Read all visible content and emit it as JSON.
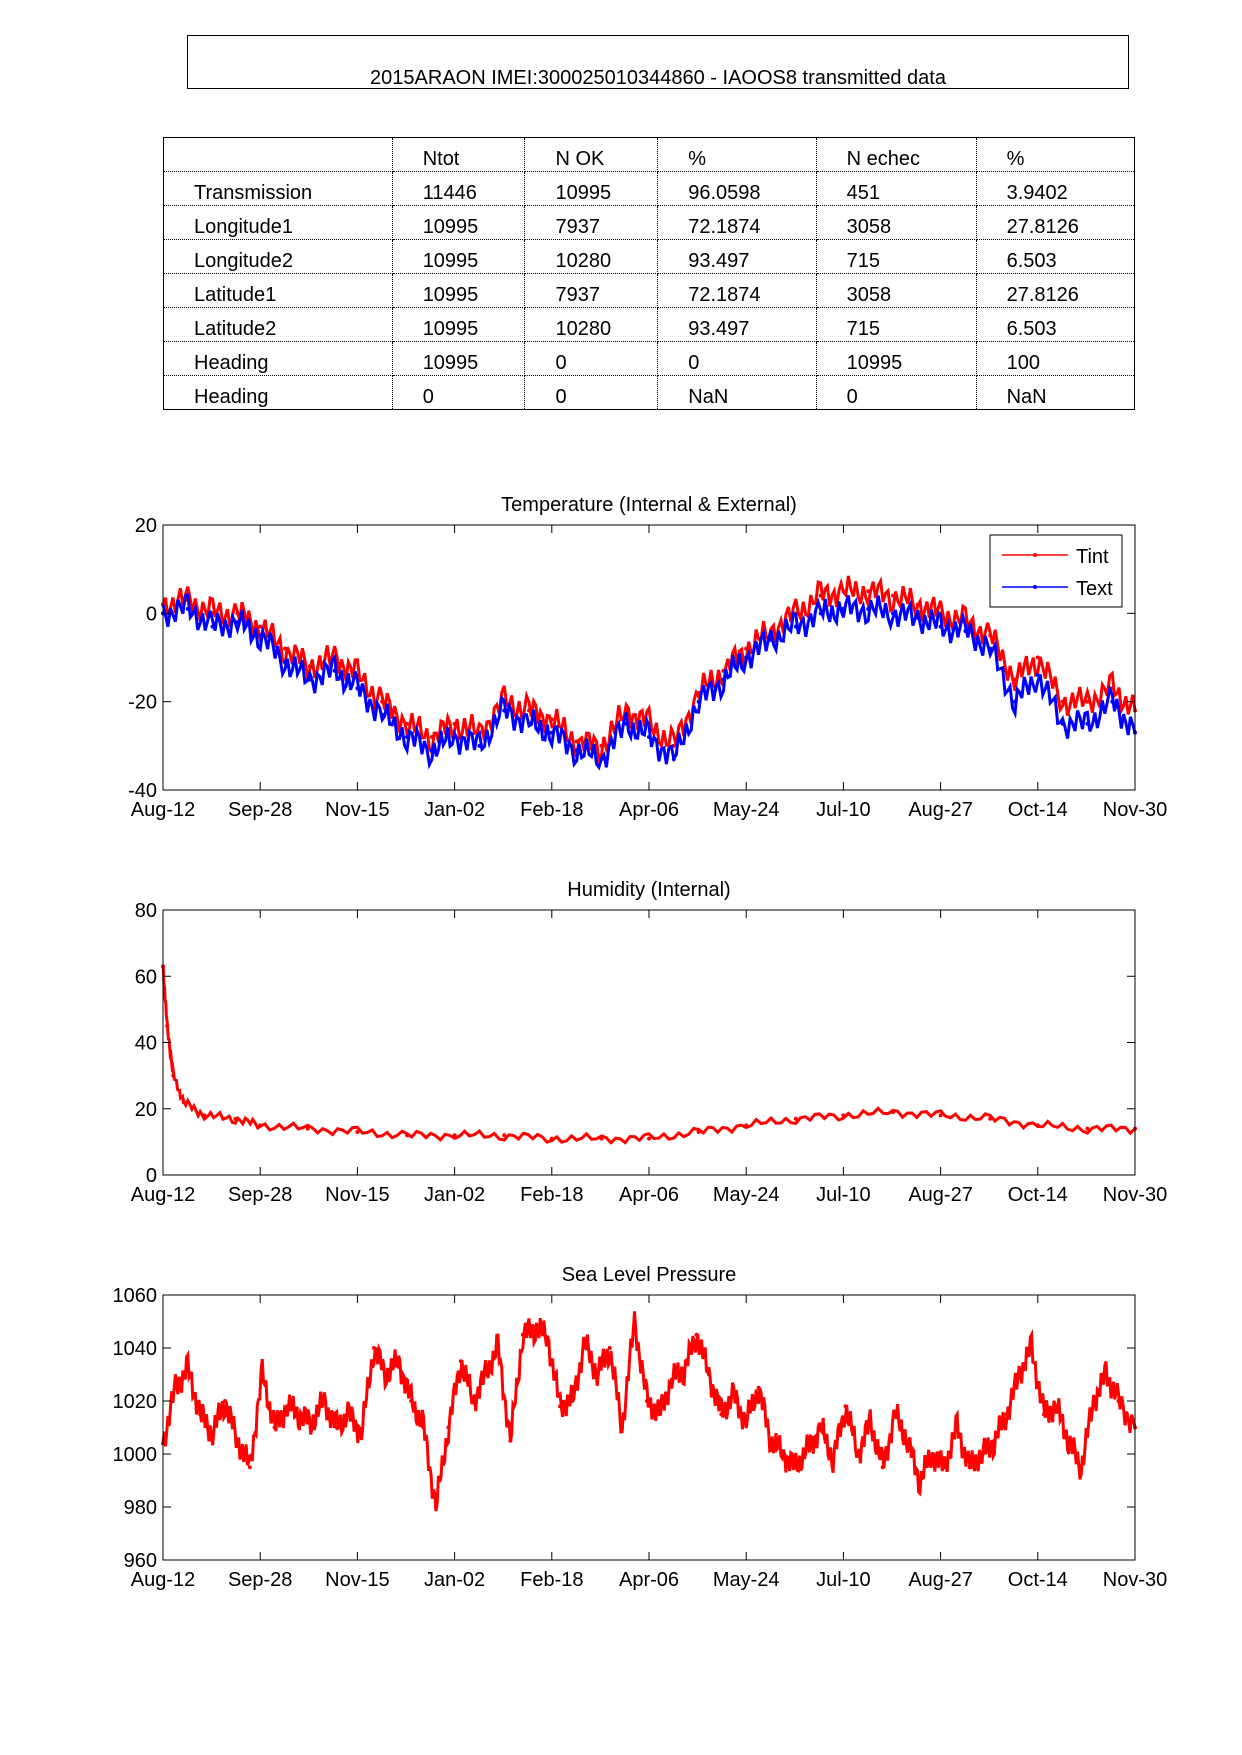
{
  "header": {
    "title": "2015ARAON  IMEI:300025010344860  - IAOOS8 transmitted data"
  },
  "table": {
    "columns": [
      "",
      "Ntot",
      "N OK",
      "%",
      "N echec",
      "%"
    ],
    "rows": [
      [
        "Transmission",
        "11446",
        "10995",
        "96.0598",
        "451",
        "3.9402"
      ],
      [
        "Longitude1",
        "10995",
        "7937",
        "72.1874",
        "3058",
        "27.8126"
      ],
      [
        "Longitude2",
        "10995",
        "10280",
        "93.497",
        "715",
        "6.503"
      ],
      [
        "Latitude1",
        "10995",
        "7937",
        "72.1874",
        "3058",
        "27.8126"
      ],
      [
        "Latitude2",
        "10995",
        "10280",
        "93.497",
        "715",
        "6.503"
      ],
      [
        "Heading",
        "10995",
        "0",
        "0",
        "10995",
        "100"
      ],
      [
        "Heading",
        "0",
        "0",
        "NaN",
        "0",
        "NaN"
      ]
    ]
  },
  "chart_data": [
    {
      "type": "line",
      "title": "Temperature (Internal & External)",
      "xticks": [
        "Aug-12",
        "Sep-28",
        "Nov-15",
        "Jan-02",
        "Feb-18",
        "Apr-06",
        "May-24",
        "Jul-10",
        "Aug-27",
        "Oct-14",
        "Nov-30"
      ],
      "xlim": [
        0,
        470
      ],
      "ylim": [
        -40,
        20
      ],
      "yticks": [
        -40,
        -20,
        0,
        20
      ],
      "legend": "top-right",
      "x": [
        0,
        12,
        24,
        36,
        47,
        59,
        71,
        83,
        94,
        106,
        118,
        130,
        141,
        153,
        165,
        177,
        188,
        200,
        212,
        224,
        235,
        247,
        259,
        271,
        282,
        294,
        306,
        318,
        329,
        341,
        353,
        365,
        376,
        388,
        400,
        412,
        423,
        435,
        447,
        459,
        470
      ],
      "series": [
        {
          "name": "Tint",
          "color": "#ff0000",
          "values": [
            2,
            3,
            0,
            0,
            -3,
            -8,
            -12,
            -10,
            -14,
            -20,
            -25,
            -28,
            -25,
            -27,
            -20,
            -22,
            -24,
            -29,
            -30,
            -22,
            -25,
            -30,
            -18,
            -13,
            -8,
            -4,
            0,
            4,
            5,
            5,
            4,
            2,
            0,
            -2,
            -5,
            -15,
            -10,
            -20,
            -20,
            -17,
            -22
          ]
        },
        {
          "name": "Text",
          "color": "#0000ff",
          "values": [
            0,
            1,
            -3,
            -2,
            -5,
            -11,
            -15,
            -13,
            -17,
            -23,
            -28,
            -31,
            -28,
            -30,
            -22,
            -25,
            -27,
            -31,
            -33,
            -25,
            -28,
            -33,
            -20,
            -15,
            -10,
            -6,
            -3,
            0,
            1,
            1,
            0,
            -1,
            -3,
            -4,
            -8,
            -20,
            -14,
            -25,
            -25,
            -20,
            -27
          ]
        }
      ]
    },
    {
      "type": "line",
      "title": "Humidity (Internal)",
      "xticks": [
        "Aug-12",
        "Sep-28",
        "Nov-15",
        "Jan-02",
        "Feb-18",
        "Apr-06",
        "May-24",
        "Jul-10",
        "Aug-27",
        "Oct-14",
        "Nov-30"
      ],
      "xlim": [
        0,
        470
      ],
      "ylim": [
        0,
        80
      ],
      "yticks": [
        0,
        20,
        40,
        60,
        80
      ],
      "x": [
        0,
        2,
        5,
        10,
        20,
        35,
        47,
        70,
        94,
        118,
        141,
        165,
        188,
        212,
        235,
        259,
        282,
        306,
        329,
        353,
        376,
        400,
        423,
        447,
        470
      ],
      "series": [
        {
          "name": "Humidity",
          "color": "#ff0000",
          "values": [
            63,
            45,
            30,
            22,
            18,
            17,
            15,
            14,
            13,
            12,
            12,
            12,
            11,
            11,
            11,
            13,
            15,
            17,
            18,
            19,
            18,
            17,
            15,
            14,
            14
          ]
        }
      ]
    },
    {
      "type": "line",
      "title": "Sea Level Pressure",
      "xticks": [
        "Aug-12",
        "Sep-28",
        "Nov-15",
        "Jan-02",
        "Feb-18",
        "Apr-06",
        "May-24",
        "Jul-10",
        "Aug-27",
        "Oct-14",
        "Nov-30"
      ],
      "xlim": [
        0,
        470
      ],
      "ylim": [
        960,
        1060
      ],
      "yticks": [
        960,
        980,
        1000,
        1020,
        1040,
        1060
      ],
      "x": [
        0,
        6,
        12,
        18,
        24,
        30,
        36,
        42,
        48,
        54,
        60,
        66,
        72,
        78,
        84,
        90,
        96,
        102,
        108,
        114,
        120,
        126,
        132,
        138,
        144,
        150,
        156,
        162,
        168,
        174,
        180,
        186,
        192,
        198,
        204,
        210,
        216,
        222,
        228,
        234,
        240,
        246,
        252,
        258,
        264,
        270,
        276,
        282,
        288,
        294,
        300,
        306,
        312,
        318,
        324,
        330,
        336,
        342,
        348,
        354,
        360,
        366,
        372,
        378,
        384,
        390,
        396,
        402,
        408,
        414,
        420,
        426,
        432,
        438,
        444,
        450,
        456,
        462,
        470
      ],
      "series": [
        {
          "name": "Pressure",
          "color": "#ff0000",
          "values": [
            1004,
            1025,
            1032,
            1015,
            1008,
            1020,
            1005,
            995,
            1030,
            1010,
            1018,
            1015,
            1012,
            1020,
            1010,
            1015,
            1008,
            1040,
            1030,
            1035,
            1020,
            1010,
            980,
            1010,
            1035,
            1020,
            1030,
            1040,
            1005,
            1045,
            1048,
            1044,
            1018,
            1020,
            1042,
            1030,
            1040,
            1010,
            1050,
            1020,
            1015,
            1028,
            1032,
            1045,
            1030,
            1015,
            1022,
            1012,
            1025,
            1005,
            1000,
            995,
            1002,
            1010,
            998,
            1018,
            1000,
            1012,
            995,
            1015,
            1005,
            990,
            1000,
            995,
            1010,
            995,
            1000,
            1005,
            1015,
            1030,
            1040,
            1015,
            1018,
            1005,
            995,
            1020,
            1030,
            1020,
            1010
          ]
        }
      ]
    }
  ]
}
